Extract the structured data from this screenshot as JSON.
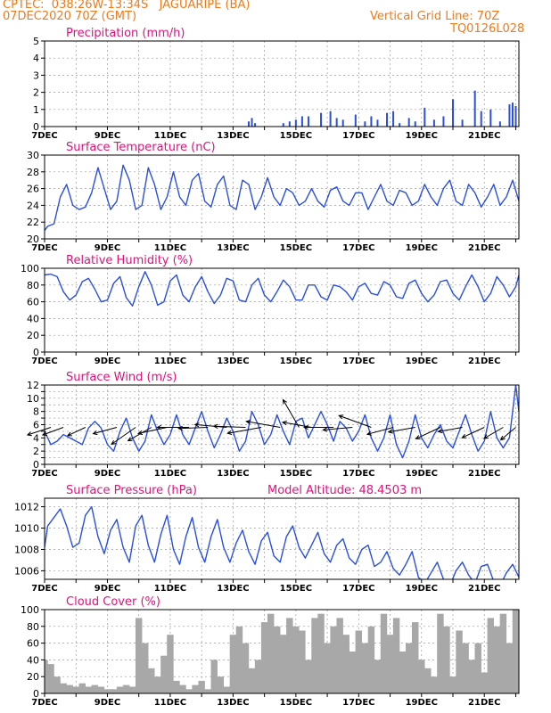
{
  "header": {
    "line1_left": "CPTEC:  038:26W-13:34S   JAGUARIPE (BA)",
    "line2_left": "07DEC2020 70Z (GMT)",
    "line1_right": "Vertical Grid Line: 70Z",
    "line2_right": "TQ0126L028"
  },
  "colors": {
    "header": "#f07a1a",
    "title": "#e0137a",
    "series": "#2a4fe0",
    "cloud": "#a8a8a8",
    "axis": "#000000"
  },
  "x_tick_labels": [
    "7DEC",
    "9DEC",
    "11DEC",
    "13DEC",
    "15DEC",
    "17DEC",
    "19DEC",
    "21DEC"
  ],
  "chart_data": [
    {
      "type": "bar",
      "title": "Precipitation (mm/h)",
      "ylim": [
        0,
        5
      ],
      "yticks": [
        0,
        1,
        2,
        3,
        4,
        5
      ],
      "x_domain": [
        7,
        22.1
      ],
      "grid": "dashed",
      "x": [
        13.5,
        13.6,
        13.7,
        14.6,
        14.8,
        15.0,
        15.2,
        15.4,
        15.8,
        16.1,
        16.3,
        16.5,
        16.9,
        17.2,
        17.4,
        17.6,
        17.9,
        18.1,
        18.3,
        18.6,
        18.8,
        19.1,
        19.4,
        19.7,
        20.0,
        20.3,
        20.7,
        20.9,
        21.2,
        21.5,
        21.8,
        21.9,
        22.0
      ],
      "values": [
        0.3,
        0.5,
        0.2,
        0.2,
        0.3,
        0.4,
        0.6,
        0.6,
        0.8,
        0.9,
        0.5,
        0.4,
        0.7,
        0.3,
        0.6,
        0.4,
        0.8,
        0.9,
        0.2,
        0.5,
        0.3,
        1.1,
        0.4,
        0.6,
        1.6,
        0.4,
        2.1,
        0.9,
        1.0,
        0.3,
        1.3,
        1.4,
        1.2
      ]
    },
    {
      "type": "line",
      "title": "Surface Temperature (nC)",
      "ylim": [
        20,
        30
      ],
      "yticks": [
        20,
        22,
        24,
        26,
        28,
        30
      ],
      "x_domain": [
        7,
        22.1
      ],
      "grid": "dashed",
      "series": [
        {
          "x": [
            7.0,
            7.1,
            7.3,
            7.5,
            7.7,
            7.9,
            8.1,
            8.3,
            8.5,
            8.7,
            8.9,
            9.1,
            9.3,
            9.5,
            9.7,
            9.9,
            10.1,
            10.3,
            10.5,
            10.7,
            10.9,
            11.1,
            11.3,
            11.5,
            11.7,
            11.9,
            12.1,
            12.3,
            12.5,
            12.7,
            12.9,
            13.1,
            13.3,
            13.5,
            13.7,
            13.9,
            14.1,
            14.3,
            14.5,
            14.7,
            14.9,
            15.1,
            15.3,
            15.5,
            15.7,
            15.9,
            16.1,
            16.3,
            16.5,
            16.7,
            16.9,
            17.1,
            17.3,
            17.5,
            17.7,
            17.9,
            18.1,
            18.3,
            18.5,
            18.7,
            18.9,
            19.1,
            19.3,
            19.5,
            19.7,
            19.9,
            20.1,
            20.3,
            20.5,
            20.7,
            20.9,
            21.1,
            21.3,
            21.5,
            21.7,
            21.9,
            22.1
          ],
          "y": [
            21.0,
            21.5,
            21.8,
            25.0,
            26.5,
            24.0,
            23.5,
            23.8,
            25.5,
            28.5,
            26.0,
            23.5,
            24.5,
            28.8,
            27.0,
            23.5,
            24.0,
            28.5,
            26.5,
            23.5,
            25.0,
            28.0,
            25.0,
            24.0,
            27.0,
            27.8,
            24.5,
            23.8,
            26.5,
            27.5,
            24.0,
            23.5,
            27.0,
            26.5,
            23.5,
            25.0,
            27.3,
            25.0,
            24.0,
            26.0,
            25.5,
            24.0,
            24.5,
            26.0,
            24.5,
            23.8,
            25.8,
            26.2,
            24.5,
            24.0,
            25.5,
            25.5,
            23.5,
            25.0,
            26.5,
            24.5,
            24.0,
            25.8,
            25.5,
            24.0,
            24.5,
            26.5,
            25.0,
            24.0,
            26.0,
            27.0,
            24.5,
            24.0,
            26.5,
            25.5,
            23.8,
            25.0,
            26.5,
            24.0,
            25.0,
            27.0,
            24.5
          ]
        }
      ]
    },
    {
      "type": "line",
      "title": "Relative Humidity (%)",
      "ylim": [
        0,
        100
      ],
      "yticks": [
        0,
        20,
        40,
        60,
        80,
        100
      ],
      "x_domain": [
        7,
        22.1
      ],
      "grid": "dashed",
      "series": [
        {
          "x": [
            7.0,
            7.2,
            7.4,
            7.6,
            7.8,
            8.0,
            8.2,
            8.4,
            8.6,
            8.8,
            9.0,
            9.2,
            9.4,
            9.6,
            9.8,
            10.0,
            10.2,
            10.4,
            10.6,
            10.8,
            11.0,
            11.2,
            11.4,
            11.6,
            11.8,
            12.0,
            12.2,
            12.4,
            12.6,
            12.8,
            13.0,
            13.2,
            13.4,
            13.6,
            13.8,
            14.0,
            14.2,
            14.4,
            14.6,
            14.8,
            15.0,
            15.2,
            15.4,
            15.6,
            15.8,
            16.0,
            16.2,
            16.4,
            16.6,
            16.8,
            17.0,
            17.2,
            17.4,
            17.6,
            17.8,
            18.0,
            18.2,
            18.4,
            18.6,
            18.8,
            19.0,
            19.2,
            19.4,
            19.6,
            19.8,
            20.0,
            20.2,
            20.4,
            20.6,
            20.8,
            21.0,
            21.2,
            21.4,
            21.6,
            21.8,
            22.0,
            22.1
          ],
          "y": [
            92,
            93,
            90,
            72,
            62,
            68,
            84,
            88,
            75,
            60,
            62,
            82,
            90,
            65,
            55,
            78,
            96,
            80,
            56,
            60,
            85,
            92,
            68,
            60,
            78,
            90,
            72,
            58,
            68,
            88,
            85,
            62,
            60,
            80,
            88,
            68,
            60,
            72,
            86,
            78,
            62,
            62,
            80,
            80,
            66,
            62,
            80,
            78,
            72,
            62,
            78,
            82,
            70,
            68,
            84,
            80,
            66,
            64,
            82,
            86,
            70,
            60,
            68,
            84,
            86,
            70,
            62,
            78,
            92,
            78,
            60,
            70,
            90,
            80,
            66,
            78,
            92
          ]
        }
      ]
    },
    {
      "type": "line",
      "title": "Surface Wind (m/s)",
      "ylim": [
        0,
        12
      ],
      "yticks": [
        0,
        1,
        2,
        3,
        4,
        5,
        6,
        7,
        8,
        9,
        10,
        11,
        12
      ],
      "yticks_labelled": [
        0,
        2,
        4,
        6,
        8,
        10,
        12
      ],
      "x_domain": [
        7,
        22.1
      ],
      "grid": "dashed",
      "series": [
        {
          "x": [
            7.0,
            7.2,
            7.4,
            7.6,
            7.8,
            8.0,
            8.2,
            8.4,
            8.6,
            8.8,
            9.0,
            9.2,
            9.4,
            9.6,
            9.8,
            10.0,
            10.2,
            10.4,
            10.6,
            10.8,
            11.0,
            11.2,
            11.4,
            11.6,
            11.8,
            12.0,
            12.2,
            12.4,
            12.6,
            12.8,
            13.0,
            13.2,
            13.4,
            13.6,
            13.8,
            14.0,
            14.2,
            14.4,
            14.6,
            14.8,
            15.0,
            15.2,
            15.4,
            15.6,
            15.8,
            16.0,
            16.2,
            16.4,
            16.6,
            16.8,
            17.0,
            17.2,
            17.4,
            17.6,
            17.8,
            18.0,
            18.2,
            18.4,
            18.6,
            18.8,
            19.0,
            19.2,
            19.4,
            19.6,
            19.8,
            20.0,
            20.2,
            20.4,
            20.6,
            20.8,
            21.0,
            21.2,
            21.4,
            21.6,
            21.8,
            22.0,
            22.1
          ],
          "y": [
            5.0,
            3.0,
            3.5,
            4.5,
            4.0,
            3.5,
            3.0,
            5.5,
            6.5,
            5.5,
            3.0,
            2.0,
            5.0,
            7.0,
            4.0,
            2.0,
            3.5,
            7.5,
            5.0,
            3.0,
            4.5,
            7.5,
            4.5,
            3.0,
            5.5,
            8.0,
            5.0,
            2.5,
            4.5,
            7.0,
            5.0,
            2.0,
            3.5,
            8.0,
            6.0,
            3.0,
            4.5,
            7.5,
            5.0,
            3.0,
            6.5,
            7.0,
            4.0,
            6.0,
            8.0,
            6.0,
            3.5,
            6.5,
            5.5,
            3.5,
            5.0,
            7.5,
            4.0,
            2.0,
            4.0,
            7.5,
            3.0,
            1.0,
            3.5,
            7.5,
            4.0,
            2.5,
            4.5,
            6.0,
            3.5,
            2.5,
            5.0,
            7.5,
            4.5,
            2.0,
            3.5,
            8.0,
            4.0,
            2.5,
            4.0,
            12.0,
            8.0
          ]
        }
      ],
      "arrows": {
        "x": [
          7.2,
          7.6,
          8.3,
          9.3,
          9.9,
          10.4,
          10.9,
          11.6,
          12.2,
          12.8,
          13.4,
          13.9,
          14.5,
          15.1,
          15.5,
          16.2,
          16.8,
          17.4,
          18.1,
          18.8,
          19.6,
          20.3,
          21.0,
          21.6,
          22.0
        ],
        "speed": [
          5,
          4.5,
          4,
          5,
          6,
          5.5,
          6,
          6.5,
          6,
          6.5,
          6.5,
          7,
          7,
          6.5,
          6,
          6,
          6,
          7,
          5.5,
          5.5,
          5.5,
          5,
          5,
          4.5,
          4
        ],
        "dir_deg": [
          198,
          200,
          205,
          195,
          215,
          210,
          192,
          180,
          182,
          175,
          178,
          190,
          170,
          120,
          170,
          180,
          185,
          160,
          195,
          190,
          205,
          190,
          205,
          210,
          220
        ]
      }
    },
    {
      "type": "line",
      "title": "Surface Pressure (hPa)",
      "annotation": "Model Altitude: 48.4503 m",
      "ylim": [
        1005.2,
        1012.8
      ],
      "yticks": [
        1006,
        1008,
        1010,
        1012
      ],
      "x_domain": [
        7,
        22.1
      ],
      "grid": "dashed",
      "series": [
        {
          "x": [
            7.0,
            7.1,
            7.3,
            7.5,
            7.7,
            7.9,
            8.1,
            8.3,
            8.5,
            8.7,
            8.9,
            9.1,
            9.3,
            9.5,
            9.7,
            9.9,
            10.1,
            10.3,
            10.5,
            10.7,
            10.9,
            11.1,
            11.3,
            11.5,
            11.7,
            11.9,
            12.1,
            12.3,
            12.5,
            12.7,
            12.9,
            13.1,
            13.3,
            13.5,
            13.7,
            13.9,
            14.1,
            14.3,
            14.5,
            14.7,
            14.9,
            15.1,
            15.3,
            15.5,
            15.7,
            15.9,
            16.1,
            16.3,
            16.5,
            16.7,
            16.9,
            17.1,
            17.3,
            17.5,
            17.7,
            17.9,
            18.1,
            18.3,
            18.5,
            18.7,
            18.9,
            19.1,
            19.3,
            19.5,
            19.7,
            19.9,
            20.1,
            20.3,
            20.5,
            20.7,
            20.9,
            21.1,
            21.3,
            21.5,
            21.7,
            21.9,
            22.1
          ],
          "y": [
            1008.2,
            1010.2,
            1011.0,
            1011.8,
            1010.2,
            1008.2,
            1008.6,
            1011.2,
            1012.0,
            1009.2,
            1007.6,
            1009.8,
            1010.8,
            1008.2,
            1006.8,
            1010.2,
            1011.2,
            1008.4,
            1006.8,
            1009.4,
            1011.2,
            1008.0,
            1006.6,
            1009.2,
            1011.0,
            1008.2,
            1006.8,
            1009.2,
            1010.8,
            1008.2,
            1006.8,
            1008.6,
            1009.8,
            1007.8,
            1006.6,
            1008.8,
            1009.6,
            1007.4,
            1006.8,
            1009.2,
            1010.2,
            1008.2,
            1007.2,
            1008.4,
            1009.6,
            1007.6,
            1006.8,
            1008.4,
            1009.0,
            1007.2,
            1006.6,
            1008.0,
            1008.4,
            1006.4,
            1006.8,
            1007.8,
            1006.2,
            1005.6,
            1006.6,
            1007.8,
            1005.4,
            1004.8,
            1005.8,
            1006.8,
            1005.2,
            1004.6,
            1006.0,
            1006.8,
            1005.6,
            1004.8,
            1006.4,
            1006.6,
            1005.0,
            1004.6,
            1005.8,
            1006.6,
            1005.4
          ]
        }
      ]
    },
    {
      "type": "bar",
      "title": "Cloud Cover (%)",
      "ylim": [
        0,
        100
      ],
      "yticks": [
        0,
        20,
        40,
        60,
        80,
        100
      ],
      "x_domain": [
        7,
        22.1
      ],
      "grid": "dashed",
      "x": [
        7.0,
        7.2,
        7.4,
        7.6,
        7.8,
        8.0,
        8.2,
        8.4,
        8.6,
        8.8,
        9.0,
        9.2,
        9.4,
        9.6,
        9.8,
        10.0,
        10.2,
        10.4,
        10.6,
        10.8,
        11.0,
        11.2,
        11.4,
        11.6,
        11.8,
        12.0,
        12.2,
        12.4,
        12.6,
        12.8,
        13.0,
        13.2,
        13.4,
        13.6,
        13.8,
        14.0,
        14.2,
        14.4,
        14.6,
        14.8,
        15.0,
        15.2,
        15.4,
        15.6,
        15.8,
        16.0,
        16.2,
        16.4,
        16.6,
        16.8,
        17.0,
        17.2,
        17.4,
        17.6,
        17.8,
        18.0,
        18.2,
        18.4,
        18.6,
        18.8,
        19.0,
        19.2,
        19.4,
        19.6,
        19.8,
        20.0,
        20.2,
        20.4,
        20.6,
        20.8,
        21.0,
        21.2,
        21.4,
        21.6,
        21.8,
        22.0
      ],
      "values": [
        40,
        35,
        20,
        12,
        10,
        8,
        12,
        8,
        10,
        8,
        5,
        5,
        8,
        10,
        8,
        90,
        60,
        30,
        20,
        45,
        70,
        15,
        10,
        5,
        10,
        15,
        5,
        40,
        20,
        8,
        70,
        80,
        60,
        30,
        40,
        85,
        95,
        80,
        70,
        90,
        80,
        75,
        40,
        90,
        95,
        60,
        80,
        90,
        70,
        50,
        75,
        60,
        80,
        40,
        95,
        70,
        90,
        50,
        60,
        85,
        40,
        30,
        20,
        95,
        80,
        20,
        75,
        60,
        40,
        60,
        25,
        90,
        80,
        95,
        60,
        100
      ]
    }
  ]
}
